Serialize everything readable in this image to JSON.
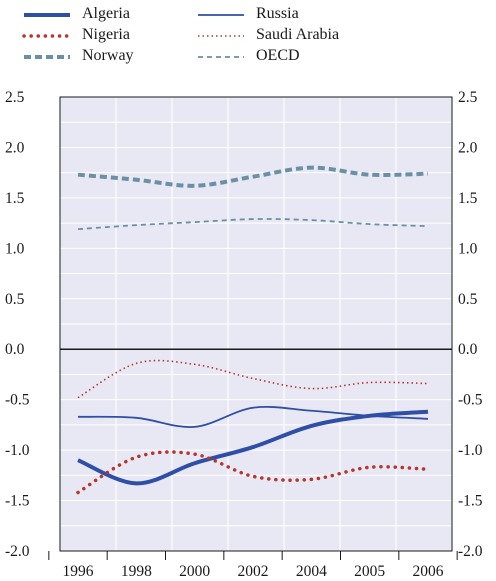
{
  "chart_data": {
    "type": "line",
    "title": "",
    "xlabel": "",
    "ylabel": "",
    "categories": [
      "1996",
      "1998",
      "2000",
      "2002",
      "2004",
      "2005",
      "2006"
    ],
    "ylim": [
      -2.0,
      2.5
    ],
    "yticks": [
      "2.5",
      "2.0",
      "1.5",
      "1.0",
      "0.5",
      "0.0",
      "-0.5",
      "-1.0",
      "-1.5",
      "-2.0"
    ],
    "grid": true,
    "legend_position": "top",
    "series": [
      {
        "name": "Algeria",
        "color": "#2f4fa6",
        "style": "thick-solid",
        "values": [
          -1.1,
          -1.33,
          -1.13,
          -0.97,
          -0.76,
          -0.66,
          -0.62
        ]
      },
      {
        "name": "Nigeria",
        "color": "#b5362b",
        "style": "thick-dotted",
        "values": [
          -1.42,
          -1.07,
          -1.04,
          -1.26,
          -1.29,
          -1.17,
          -1.19
        ]
      },
      {
        "name": "Norway",
        "color": "#6b8fa3",
        "style": "thick-dashed",
        "values": [
          1.73,
          1.68,
          1.62,
          1.71,
          1.8,
          1.73,
          1.74
        ]
      },
      {
        "name": "Russia",
        "color": "#2f4fa6",
        "style": "thin-solid",
        "values": [
          -0.67,
          -0.68,
          -0.77,
          -0.58,
          -0.61,
          -0.66,
          -0.69
        ]
      },
      {
        "name": "Saudi Arabia",
        "color": "#b5362b",
        "style": "thin-dotted",
        "values": [
          -0.48,
          -0.14,
          -0.15,
          -0.29,
          -0.39,
          -0.33,
          -0.34
        ]
      },
      {
        "name": "OECD",
        "color": "#6b8fa3",
        "style": "thin-dashed",
        "values": [
          1.19,
          1.23,
          1.26,
          1.29,
          1.28,
          1.24,
          1.22
        ]
      }
    ]
  }
}
